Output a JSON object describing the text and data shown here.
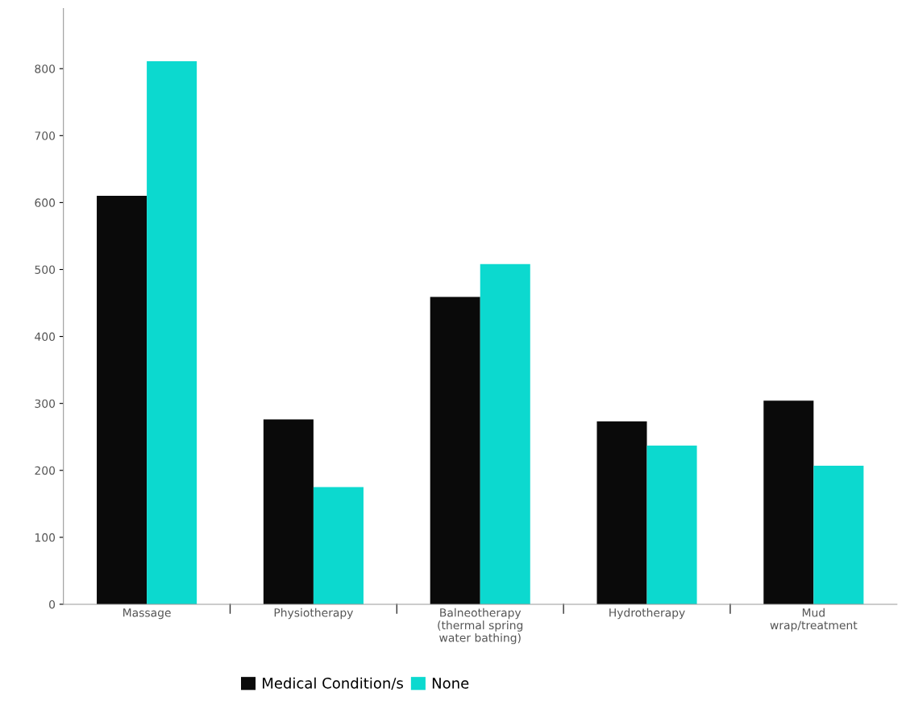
{
  "chart_data": {
    "type": "bar",
    "categories": [
      "Massage",
      "Physiotherapy",
      "Balneotherapy\n(thermal spring\nwater bathing)",
      "Hydrotherapy",
      "Mud\nwrap/treatment"
    ],
    "series": [
      {
        "name": "Medical Condition/s",
        "color": "#0a0a0a",
        "values": [
          610,
          276,
          459,
          273,
          304
        ]
      },
      {
        "name": "None",
        "color": "#0cd9cf",
        "values": [
          811,
          175,
          508,
          237,
          207
        ]
      }
    ],
    "ylim": [
      0,
      890
    ],
    "yticks": [
      0,
      100,
      200,
      300,
      400,
      500,
      600,
      700,
      800
    ],
    "grid": false,
    "legend": "bottom"
  }
}
